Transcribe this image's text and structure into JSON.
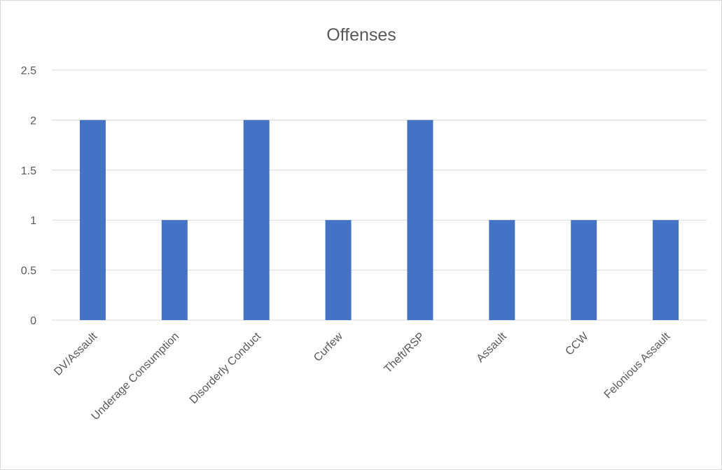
{
  "chart_data": {
    "type": "bar",
    "title": "Offenses",
    "categories": [
      "DV/Assault",
      "Underage Consumption",
      "Disorderly Conduct",
      "Curfew",
      "Theft/RSP",
      "Assault",
      "CCW",
      "Felonious Assault"
    ],
    "values": [
      2,
      1,
      2,
      1,
      2,
      1,
      1,
      1
    ],
    "yticks": [
      "0",
      "0.5",
      "1",
      "1.5",
      "2",
      "2.5"
    ],
    "ylim": [
      0,
      2.5
    ],
    "grid": true,
    "legend": "none",
    "bar_color": "#4472C4"
  }
}
